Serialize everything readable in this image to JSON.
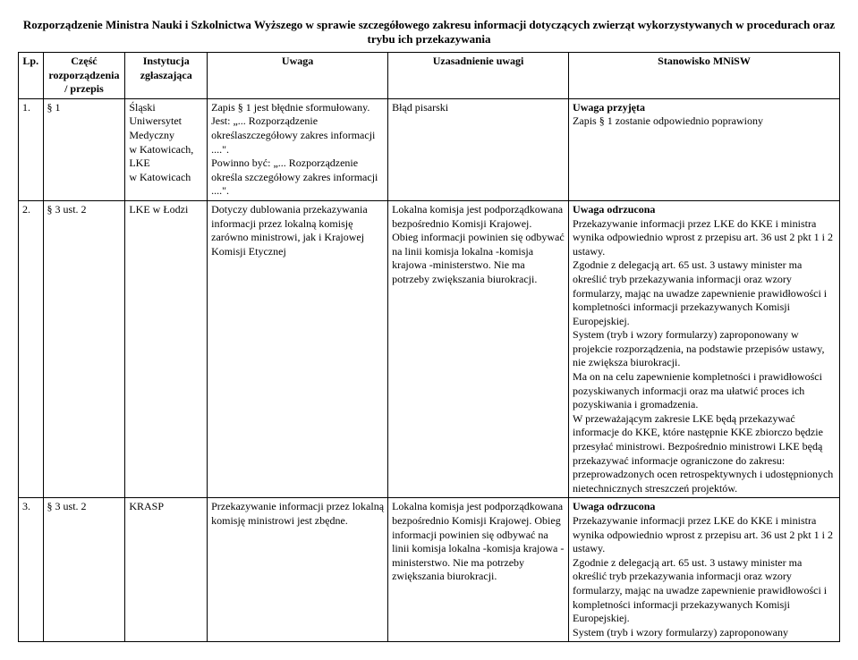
{
  "title": "Rozporządzenie Ministra Nauki i Szkolnictwa Wyższego w sprawie szczegółowego zakresu informacji dotyczących zwierząt wykorzystywanych w procedurach oraz trybu ich przekazywania",
  "headers": {
    "lp": "Lp.",
    "part": "Część rozporządzenia / przepis",
    "institution": "Instytucja zgłaszająca",
    "remark": "Uwaga",
    "justification": "Uzasadnienie uwagi",
    "stance": "Stanowisko MNiSW"
  },
  "rows": [
    {
      "lp": "1.",
      "part": "§ 1",
      "institution": "Śląski Uniwersytet Medyczny\nw Katowicach,\nLKE\nw Katowicach",
      "remark": "Zapis § 1 jest błędnie sformułowany.\nJest: „... Rozporządzenie określaszczegółowy zakres informacji ....\".\nPowinno być: „... Rozporządzenie określa szczegółowy zakres informacji ....\".",
      "justification": "Błąd pisarski",
      "stance_bold": "Uwaga przyjęta",
      "stance_rest": "Zapis § 1 zostanie odpowiednio poprawiony"
    },
    {
      "lp": "2.",
      "part": "§ 3 ust. 2",
      "institution": "LKE w Łodzi",
      "remark": "Dotyczy dublowania przekazywania informacji przez lokalną komisję zarówno ministrowi, jak i Krajowej Komisji Etycznej",
      "justification": "Lokalna komisja jest podporządkowana bezpośrednio Komisji Krajowej.\nObieg informacji powinien się odbywać na linii komisja lokalna -komisja krajowa -ministerstwo. Nie ma potrzeby zwiększania biurokracji.",
      "stance_bold": "Uwaga odrzucona",
      "stance_rest": "Przekazywanie informacji przez LKE do KKE i ministra wynika odpowiednio wprost z przepisu art. 36 ust 2 pkt 1 i 2 ustawy.\nZgodnie z delegacją art. 65 ust. 3 ustawy minister ma określić tryb przekazywania informacji oraz wzory formularzy, mając na uwadze zapewnienie prawidłowości i kompletności informacji przekazywanych Komisji Europejskiej.\nSystem (tryb i wzory formularzy) zaproponowany w projekcie rozporządzenia, na podstawie przepisów ustawy, nie zwiększa biurokracji.\nMa on na celu zapewnienie kompletności i prawidłowości pozyskiwanych informacji oraz ma ułatwić proces ich pozyskiwania i gromadzenia.\nW przeważającym zakresie LKE będą przekazywać informacje do KKE, które następnie KKE zbiorczo będzie przesyłać ministrowi. Bezpośrednio ministrowi LKE będą przekazywać informacje ograniczone do zakresu: przeprowadzonych ocen retrospektywnych i udostępnionych nietechnicznych streszczeń projektów."
    },
    {
      "lp": "3.",
      "part": "§ 3 ust. 2",
      "institution": "KRASP",
      "remark": "Przekazywanie informacji przez lokalną komisję ministrowi jest zbędne.",
      "justification": "Lokalna komisja jest podporządkowana bezpośrednio Komisji Krajowej. Obieg informacji powinien się odbywać na linii komisja lokalna -komisja krajowa - ministerstwo. Nie ma potrzeby zwiększania biurokracji.",
      "stance_bold": "Uwaga odrzucona",
      "stance_rest": "Przekazywanie informacji przez LKE do KKE i ministra wynika odpowiednio wprost z przepisu art. 36 ust 2 pkt 1 i 2 ustawy.\nZgodnie z delegacją art. 65 ust. 3 ustawy minister ma określić tryb przekazywania informacji oraz wzory formularzy, mając na uwadze zapewnienie prawidłowości i kompletności informacji przekazywanych Komisji Europejskiej.\nSystem (tryb i wzory formularzy) zaproponowany"
    }
  ]
}
